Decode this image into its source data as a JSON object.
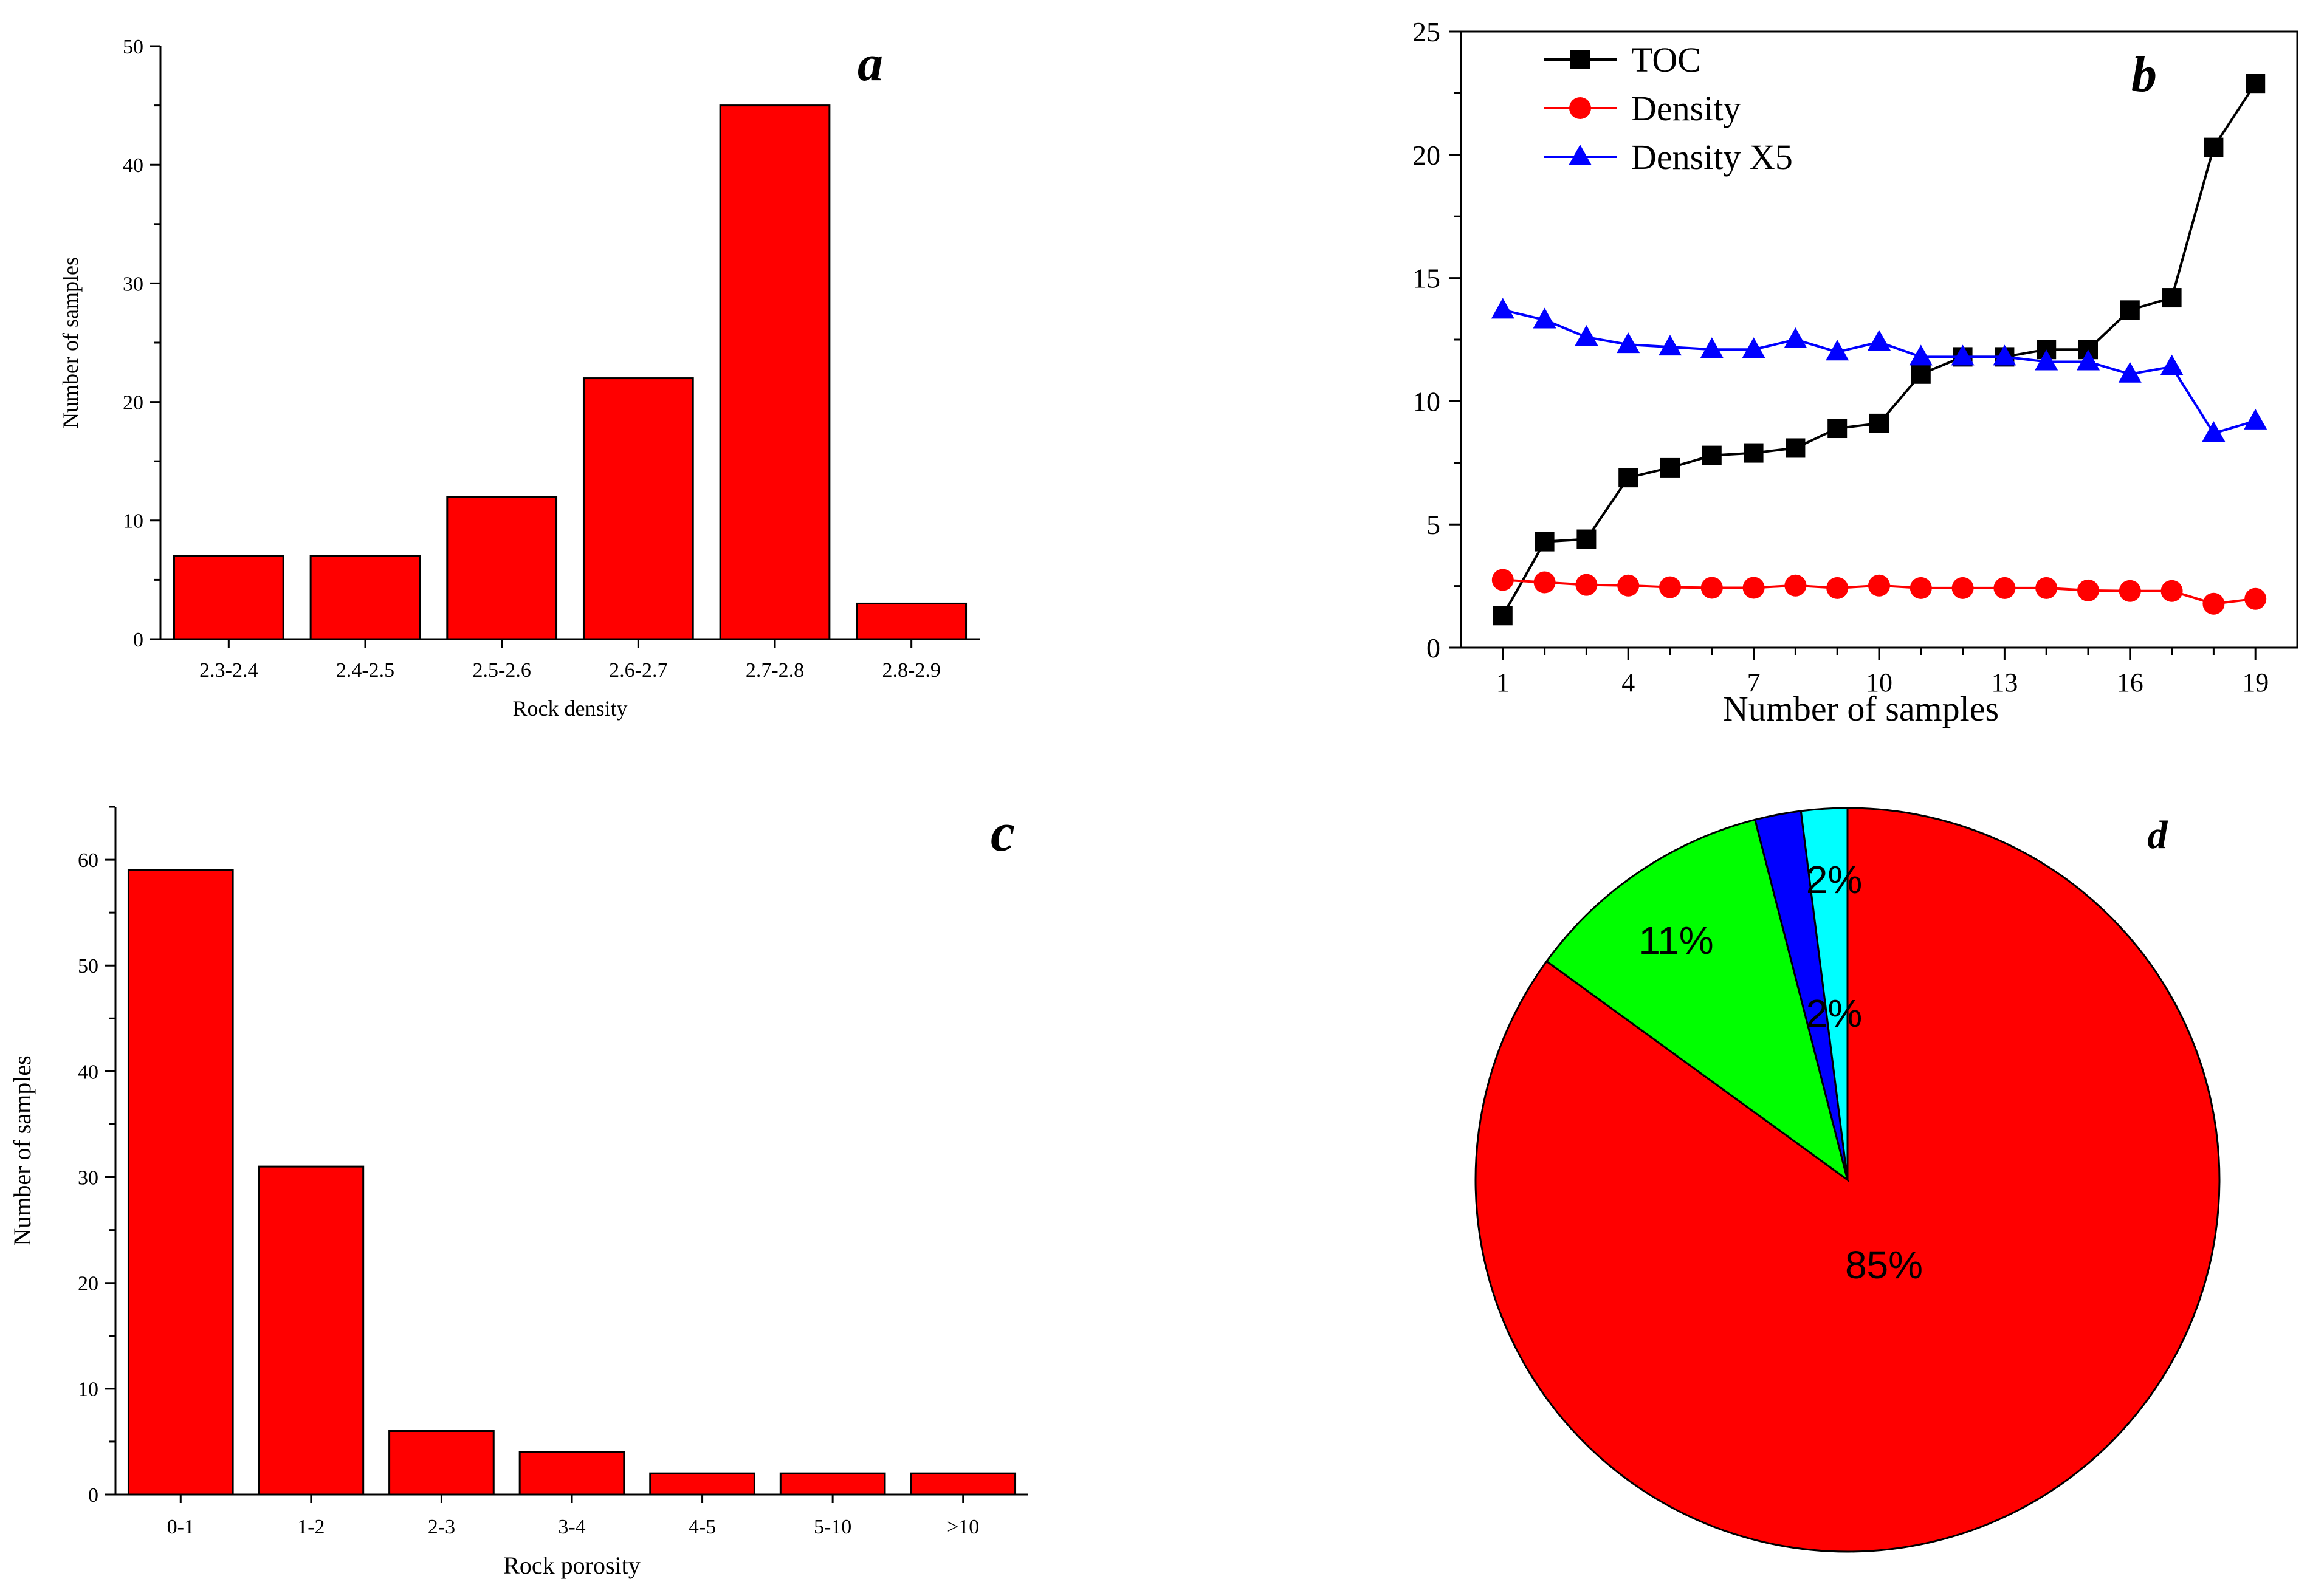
{
  "chart_data": [
    {
      "panel": "a",
      "type": "bar",
      "panel_label": "a",
      "categories": [
        "2.3-2.4",
        "2.4-2.5",
        "2.5-2.6",
        "2.6-2.7",
        "2.7-2.8",
        "2.8-2.9"
      ],
      "values": [
        7,
        7,
        12,
        22,
        45,
        3
      ],
      "xlabel": "Rock density",
      "ylabel": "Number of samples",
      "ylim": [
        0,
        50
      ],
      "yticks": [
        0,
        10,
        20,
        30,
        40,
        50
      ],
      "bar_color": "#ff0000"
    },
    {
      "panel": "b",
      "type": "line",
      "panel_label": "b",
      "x": [
        1,
        2,
        3,
        4,
        5,
        6,
        7,
        8,
        9,
        10,
        11,
        12,
        13,
        14,
        15,
        16,
        17,
        18,
        19
      ],
      "series": [
        {
          "name": "TOC",
          "color": "#000000",
          "marker": "square",
          "values": [
            1.3,
            4.3,
            4.4,
            6.9,
            7.3,
            7.8,
            7.9,
            8.1,
            8.9,
            9.1,
            11.1,
            11.8,
            11.8,
            12.1,
            12.1,
            13.7,
            14.2,
            20.3,
            22.9
          ]
        },
        {
          "name": "Density",
          "color": "#ff0000",
          "marker": "circle",
          "values": [
            2.75,
            2.65,
            2.55,
            2.52,
            2.45,
            2.43,
            2.43,
            2.52,
            2.42,
            2.52,
            2.42,
            2.42,
            2.42,
            2.42,
            2.32,
            2.3,
            2.3,
            1.78,
            1.98
          ]
        },
        {
          "name": "Density X5",
          "color": "#0000ff",
          "marker": "triangle",
          "values": [
            13.7,
            13.3,
            12.6,
            12.3,
            12.2,
            12.1,
            12.1,
            12.5,
            12.0,
            12.4,
            11.8,
            11.8,
            11.8,
            11.6,
            11.6,
            11.1,
            11.4,
            8.7,
            9.2
          ]
        }
      ],
      "xlabel": "Number of samples",
      "ylabel": "",
      "xlim": [
        0,
        20
      ],
      "ylim": [
        0,
        25
      ],
      "xticks": [
        1,
        4,
        7,
        10,
        13,
        16,
        19
      ],
      "yticks": [
        0,
        5,
        10,
        15,
        20,
        25
      ],
      "legend": "top-left"
    },
    {
      "panel": "c",
      "type": "bar",
      "panel_label": "c",
      "categories": [
        "0-1",
        "1-2",
        "2-3",
        "3-4",
        "4-5",
        "5-10",
        ">10"
      ],
      "values": [
        59,
        31,
        6,
        4,
        2,
        2,
        2
      ],
      "xlabel": "Rock porosity",
      "ylabel": "Number of samples",
      "ylim": [
        0,
        65
      ],
      "yticks": [
        0,
        10,
        20,
        30,
        40,
        50,
        60
      ],
      "bar_color": "#ff0000"
    },
    {
      "panel": "d",
      "type": "pie",
      "panel_label": "d",
      "slices": [
        {
          "value": 85,
          "label": "85%",
          "color": "#ff0000"
        },
        {
          "value": 11,
          "label": "11%",
          "color": "#00ff00"
        },
        {
          "value": 2,
          "label": "2%",
          "color": "#0000ff"
        },
        {
          "value": 2,
          "label": "2%",
          "color": "#00ffff"
        }
      ],
      "start": "12 o'clock, clockwise"
    }
  ]
}
